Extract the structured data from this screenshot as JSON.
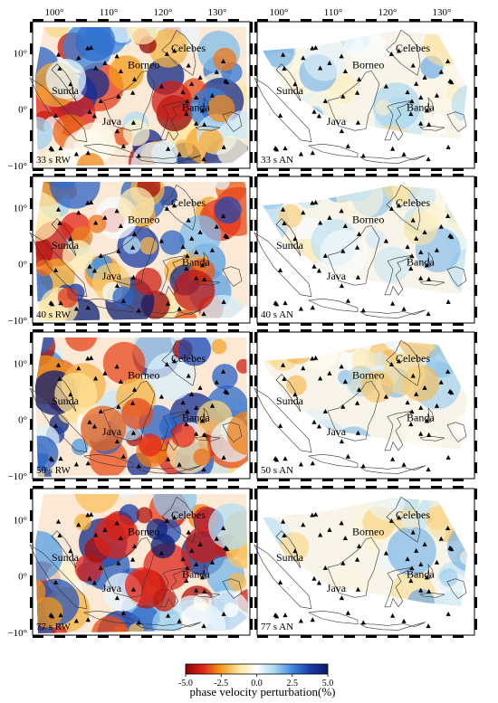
{
  "top_longitude_labels": [
    "100°",
    "110°",
    "120°",
    "130°"
  ],
  "latitude_labels": [
    "10°",
    "0°",
    "−10°"
  ],
  "places": {
    "borneo": "Borneo",
    "celebes": "Celebes",
    "sunda": "Sunda",
    "java": "Java",
    "banda": "Banda"
  },
  "panels": [
    {
      "label": "33 s RW",
      "type": "RW"
    },
    {
      "label": "33 s AN",
      "type": "AN"
    },
    {
      "label": "40 s RW",
      "type": "RW"
    },
    {
      "label": "40 s AN",
      "type": "AN"
    },
    {
      "label": "50 s RW",
      "type": "RW"
    },
    {
      "label": "50 s AN",
      "type": "AN"
    },
    {
      "label": "77 s RW",
      "type": "RW"
    },
    {
      "label": "77 s AN",
      "type": "AN"
    }
  ],
  "colorbar": {
    "title": "phase velocity perturbation(%)",
    "ticks": [
      "-5.0",
      "-2.5",
      "0.0",
      "2.5",
      "5.0"
    ],
    "min": -5.0,
    "max": 5.0,
    "colors": [
      "#8b0000",
      "#e2261a",
      "#f39a18",
      "#fde6a0",
      "#ffffff",
      "#a8d8f0",
      "#3c8be0",
      "#1a3aa8",
      "#0a1a6e"
    ]
  }
}
